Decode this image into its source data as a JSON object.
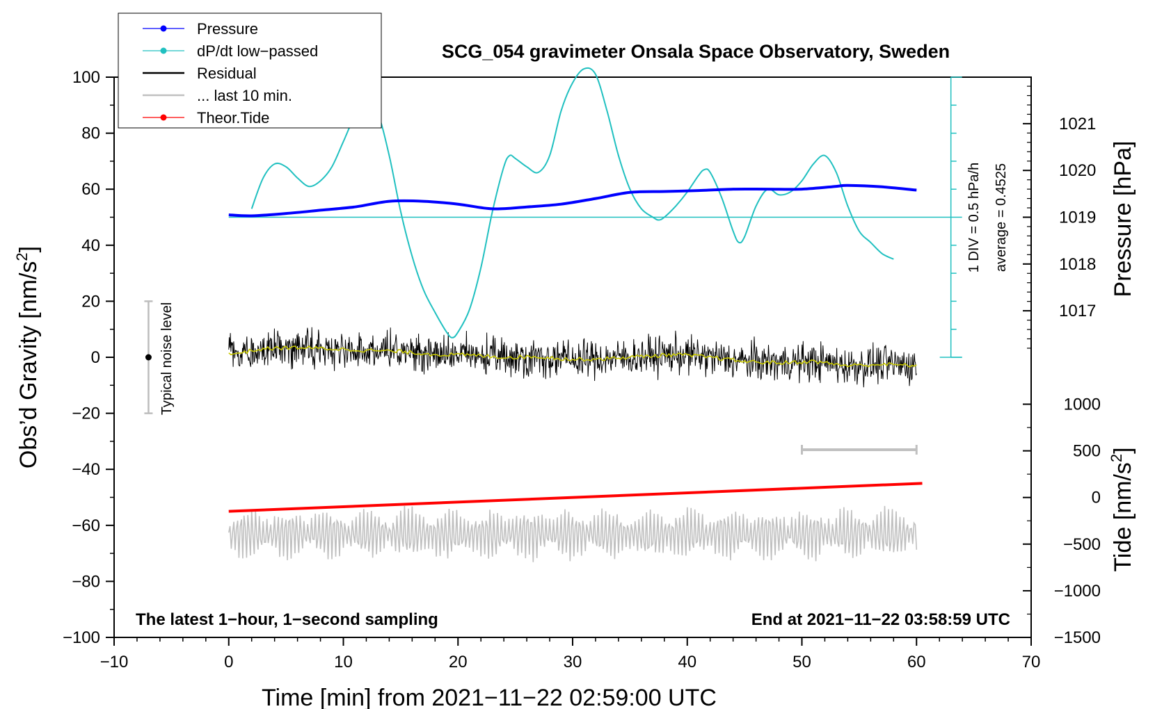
{
  "chart_data": {
    "type": "line",
    "title": "SCG_054 gravimeter Onsala Space Observatory, Sweden",
    "xlabel": "Time [min] from 2021−11−22 02:59:00 UTC",
    "ylabel_left": "Obs’d Gravity [nm/s",
    "ylabel_left_sup": "2",
    "ylabel_left_close": "]",
    "ylabel_right_top": "Pressure [hPa]",
    "ylabel_right_bottom": "Tide [nm/s",
    "ylabel_right_bottom_sup": "2",
    "ylabel_right_bottom_close": "]",
    "xlim": [
      -10,
      70
    ],
    "ylim_left": [
      -100,
      100
    ],
    "x_ticks": [
      -10,
      0,
      10,
      20,
      30,
      40,
      50,
      60,
      70
    ],
    "x_tick_labels": [
      "−10",
      "0",
      "10",
      "20",
      "30",
      "40",
      "50",
      "60",
      "70"
    ],
    "y_ticks_left": [
      100,
      80,
      60,
      40,
      20,
      0,
      -20,
      -40,
      -60,
      -80,
      -100
    ],
    "y_tick_labels_left": [
      "100",
      "80",
      "60",
      "40",
      "20",
      "0",
      "−20",
      "−40",
      "−60",
      "−80",
      "−100"
    ],
    "pressure_axis": {
      "ticks": [
        1017,
        1018,
        1019,
        1020,
        1021
      ],
      "labels": [
        "1017",
        "1018",
        "1019",
        "1020",
        "1021"
      ],
      "ref_hpa": 1019,
      "ref_gravity": 50,
      "gravity_per_hpa": 16.7
    },
    "tide_axis": {
      "ticks": [
        1000,
        500,
        0,
        -500,
        -1000,
        -1500
      ],
      "labels": [
        "1000",
        "500",
        "0",
        "−500",
        "−1000",
        "−1500"
      ],
      "ref_tide": -1500,
      "ref_gravity": -100,
      "gravity_per_unit": 0.0333
    },
    "series": [
      {
        "name": "Pressure",
        "color": "#0000ff",
        "unit": "hPa",
        "x": [
          0,
          2,
          5,
          8,
          11,
          14,
          17,
          20,
          23,
          26,
          29,
          32,
          35,
          38,
          41,
          44,
          47,
          50,
          53,
          54,
          57,
          60
        ],
        "values": [
          1019.05,
          1019.03,
          1019.08,
          1019.15,
          1019.22,
          1019.34,
          1019.34,
          1019.28,
          1019.18,
          1019.22,
          1019.28,
          1019.4,
          1019.53,
          1019.55,
          1019.57,
          1019.6,
          1019.6,
          1019.6,
          1019.66,
          1019.68,
          1019.65,
          1019.58
        ]
      },
      {
        "name": "dP/dt low−passed",
        "color": "#20c0c0",
        "unit": "nm/s2 plot scale",
        "x": [
          2,
          3,
          4,
          5,
          6,
          7,
          8,
          9,
          10,
          11,
          12,
          13,
          14,
          15,
          16,
          17,
          18,
          19,
          19.5,
          20,
          21,
          22,
          23,
          24,
          24.5,
          25,
          26,
          27,
          28,
          29,
          30,
          31,
          32,
          33,
          34,
          35,
          36,
          37,
          37.5,
          38,
          39,
          40,
          41,
          41.5,
          42,
          43,
          44,
          44.5,
          45,
          46,
          47,
          48,
          49,
          50,
          51,
          52,
          53,
          54,
          55,
          56,
          57,
          58
        ],
        "values": [
          53,
          64,
          69,
          68,
          64,
          61,
          63,
          68,
          77,
          86,
          90,
          87,
          72,
          52,
          36,
          24,
          16,
          9,
          7,
          9,
          17,
          32,
          52,
          68,
          72,
          71,
          68,
          66,
          72,
          88,
          98,
          103,
          101,
          88,
          72,
          60,
          53,
          50,
          49,
          50,
          54,
          59,
          65,
          67,
          66,
          57,
          45,
          41,
          43,
          54,
          60,
          58,
          59,
          63,
          69,
          72,
          66,
          54,
          45,
          41,
          37,
          35
        ]
      },
      {
        "name": "Residual",
        "color": "#000000",
        "unit": "nm/s2",
        "x": [
          0,
          60
        ],
        "values": [
          0,
          -3
        ]
      },
      {
        "name": "... last 10 min.",
        "color": "#c0c0c0",
        "unit": "nm/s2",
        "x": [
          0,
          60
        ],
        "values": [
          -63,
          -63
        ]
      },
      {
        "name": "Theor.Tide",
        "color": "#ff0000",
        "unit": "nm/s2 tide scale",
        "x": [
          0,
          60.5
        ],
        "values": [
          -55,
          -45
        ]
      }
    ],
    "residual_smooth": {
      "color": "#c8c800",
      "x": [
        0,
        3,
        6,
        9,
        12,
        15,
        18,
        21,
        24,
        27,
        30,
        33,
        36,
        39,
        42,
        45,
        48,
        51,
        54,
        57,
        60
      ],
      "values": [
        1,
        3,
        3.5,
        3,
        2.5,
        2,
        1,
        0.8,
        0,
        0.2,
        -0.8,
        -0.5,
        0.3,
        1,
        0,
        -1.5,
        -2,
        -1.5,
        -3,
        -2.5,
        -3
      ]
    },
    "reference_line": {
      "y": 50,
      "x_start": 0,
      "x_end": 63
    },
    "legend": [
      "Pressure",
      "dP/dt low−passed",
      "Residual",
      "... last 10 min.",
      "Theor.Tide"
    ],
    "legend_position": "top-left",
    "annotations": {
      "noise_label": "Typical noise level",
      "noise_center": 0,
      "noise_range": [
        -20,
        20
      ],
      "noise_x": -7,
      "div_label": "1 DIV = 0.5 hPa/h",
      "average_label": "average = 0.4525",
      "bottom_left": "The latest 1−hour, 1−second sampling",
      "bottom_right": "End at 2021−11−22 03:58:59 UTC",
      "scale_bar": {
        "x_start": 50,
        "x_end": 60,
        "y": -33,
        "color": "#c0c0c0"
      }
    },
    "colors": {
      "pressure": "#0000ff",
      "dpdt": "#20c0c0",
      "residual": "#000000",
      "last10": "#c0c0c0",
      "tide": "#ff0000",
      "smooth": "#c8c800"
    }
  }
}
